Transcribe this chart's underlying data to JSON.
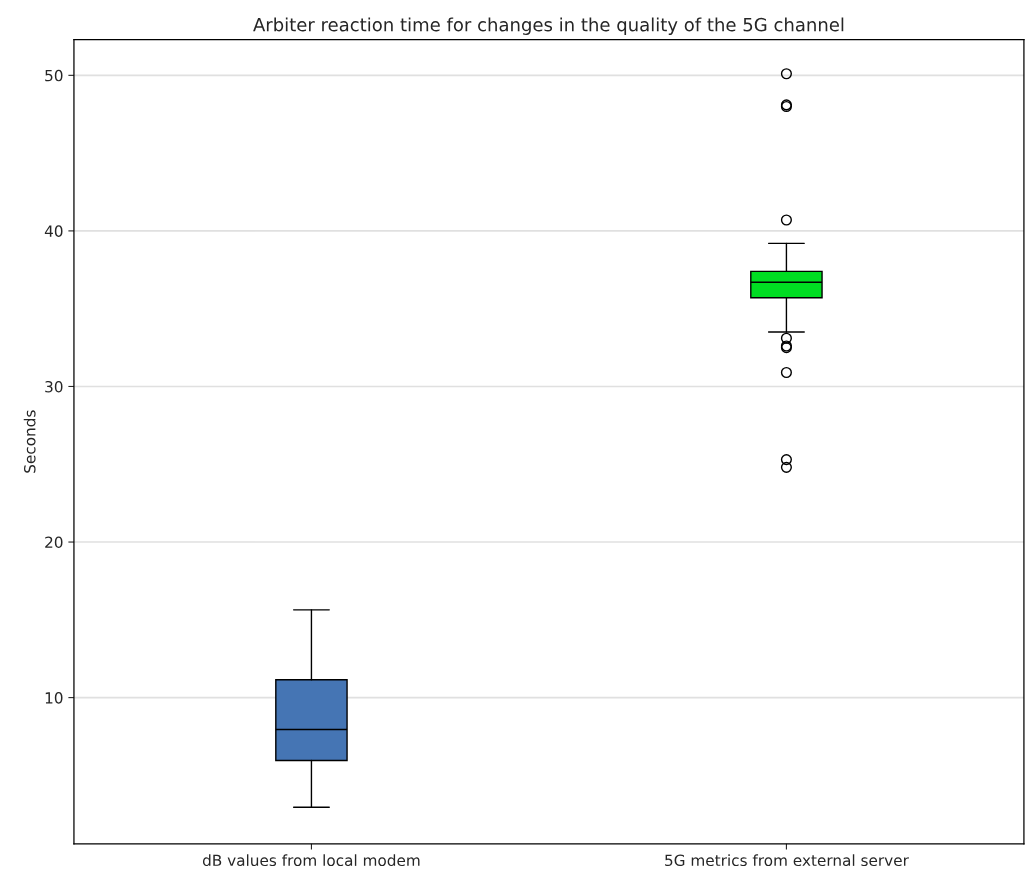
{
  "chart_data": {
    "type": "box",
    "title": "Arbiter reaction time for changes in the quality of the 5G channel",
    "ylabel": "Seconds",
    "categories": [
      "dB values from local modem",
      "5G metrics from external server"
    ],
    "colors": [
      "#4575b4",
      "#00dd22"
    ],
    "boxes": [
      {
        "low": 2.95,
        "q1": 5.96,
        "median": 7.95,
        "q3": 11.15,
        "high": 15.64
      },
      {
        "low": 33.5,
        "q1": 35.7,
        "median": 36.7,
        "q3": 37.4,
        "high": 39.2,
        "outliers": [
          50.1,
          48.1,
          48.0,
          40.7,
          33.1,
          32.6,
          32.5,
          30.9,
          25.3,
          24.8
        ]
      }
    ],
    "ylim": [
      0.6,
      52.3
    ],
    "yticks": [
      10,
      20,
      30,
      40,
      50
    ],
    "grid": "y"
  }
}
